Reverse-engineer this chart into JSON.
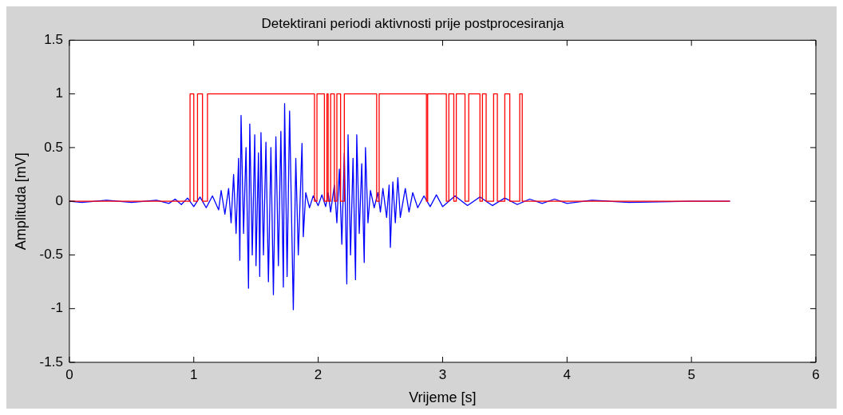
{
  "chart_data": {
    "type": "line",
    "title": "Detektirani periodi aktivnosti prije postprocesiranja",
    "xlabel": "Vrijeme [s]",
    "ylabel": "Amplituda [mV]",
    "xlim": [
      0,
      6
    ],
    "xticks": [
      0,
      1,
      2,
      3,
      4,
      5,
      6
    ],
    "ylim": [
      -1.5,
      1.5
    ],
    "yticks": [
      -1.5,
      -1,
      -0.5,
      0,
      0.5,
      1,
      1.5
    ],
    "grid": false,
    "legend": false,
    "marker": "none",
    "line_style": "solid",
    "series": [
      {
        "color": "#0000ff",
        "x": [
          0,
          0.1,
          0.3,
          0.5,
          0.7,
          0.8,
          0.85,
          0.9,
          0.95,
          1.0,
          1.05,
          1.1,
          1.15,
          1.2,
          1.22,
          1.25,
          1.28,
          1.3,
          1.32,
          1.34,
          1.36,
          1.37,
          1.38,
          1.4,
          1.42,
          1.44,
          1.45,
          1.47,
          1.49,
          1.5,
          1.52,
          1.53,
          1.54,
          1.56,
          1.58,
          1.6,
          1.62,
          1.64,
          1.66,
          1.68,
          1.7,
          1.72,
          1.73,
          1.75,
          1.77,
          1.8,
          1.82,
          1.84,
          1.87,
          1.88,
          1.9,
          1.93,
          1.96,
          2.0,
          2.03,
          2.06,
          2.08,
          2.1,
          2.13,
          2.15,
          2.17,
          2.19,
          2.21,
          2.23,
          2.24,
          2.26,
          2.28,
          2.3,
          2.31,
          2.33,
          2.35,
          2.37,
          2.38,
          2.4,
          2.42,
          2.45,
          2.48,
          2.5,
          2.52,
          2.55,
          2.57,
          2.58,
          2.6,
          2.62,
          2.64,
          2.66,
          2.7,
          2.73,
          2.76,
          2.8,
          2.85,
          2.9,
          2.95,
          3.0,
          3.1,
          3.2,
          3.3,
          3.4,
          3.5,
          3.6,
          3.7,
          3.8,
          3.9,
          4.0,
          4.2,
          4.5,
          5.0,
          5.31
        ],
        "values": [
          0,
          -0.01,
          0.01,
          -0.01,
          0.01,
          -0.02,
          0.02,
          -0.03,
          0.03,
          -0.05,
          0.04,
          -0.06,
          0.05,
          -0.08,
          0.1,
          -0.12,
          0.12,
          -0.2,
          0.25,
          -0.3,
          0.4,
          -0.55,
          0.8,
          -0.3,
          0.5,
          -0.81,
          0.72,
          -0.5,
          0.62,
          -0.6,
          0.45,
          -0.7,
          0.64,
          -0.5,
          0.55,
          -0.75,
          0.5,
          -0.87,
          0.6,
          -0.6,
          0.65,
          -0.8,
          0.91,
          -0.7,
          0.84,
          -1.01,
          0.4,
          -0.5,
          0.54,
          -0.33,
          0.08,
          -0.06,
          0.05,
          -0.04,
          0.06,
          -0.05,
          0.08,
          -0.1,
          0.15,
          -0.2,
          0.3,
          -0.4,
          0.45,
          -0.77,
          0.62,
          -0.5,
          0.4,
          -0.73,
          0.62,
          -0.3,
          0.35,
          -0.57,
          0.5,
          -0.2,
          0.1,
          -0.06,
          0.08,
          -0.1,
          0.12,
          -0.15,
          0.15,
          -0.43,
          0.18,
          -0.2,
          0.22,
          -0.15,
          0.12,
          -0.1,
          0.08,
          -0.06,
          0.05,
          -0.05,
          0.06,
          -0.05,
          0.05,
          -0.04,
          0.04,
          -0.04,
          0.03,
          -0.03,
          0.02,
          -0.02,
          0.02,
          -0.02,
          0.01,
          -0.01,
          0,
          0
        ]
      },
      {
        "type": "step",
        "color": "#ff0000",
        "x": [
          0,
          0.97,
          1.0,
          1.03,
          1.07,
          1.11,
          1.97,
          1.99,
          2.05,
          2.07,
          2.08,
          2.1,
          2.13,
          2.15,
          2.18,
          2.21,
          2.47,
          2.49,
          2.87,
          2.88,
          3.03,
          3.05,
          3.09,
          3.11,
          3.18,
          3.21,
          3.3,
          3.32,
          3.35,
          3.41,
          3.44,
          3.5,
          3.54,
          3.62,
          3.64,
          5.31
        ],
        "values": [
          0,
          1,
          0,
          1,
          0,
          1,
          0,
          1,
          0,
          1,
          0,
          1,
          0,
          1,
          0,
          1,
          0,
          1,
          0,
          1,
          0,
          1,
          0,
          1,
          0,
          1,
          0,
          1,
          0,
          1,
          0,
          1,
          0,
          1,
          0,
          0
        ]
      }
    ]
  }
}
